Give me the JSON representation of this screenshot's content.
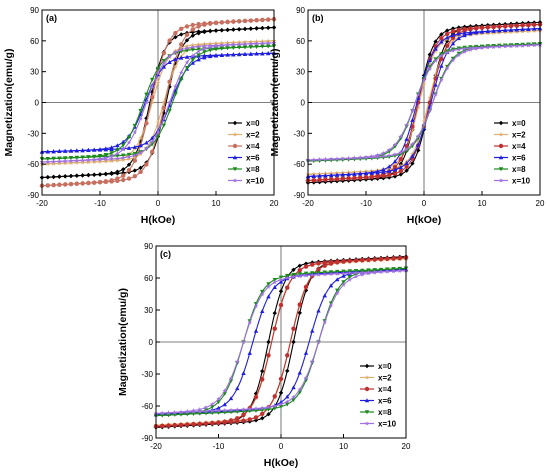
{
  "chart_data": [
    {
      "type": "line",
      "panel_label": "(a)",
      "xlabel": "H(kOe)",
      "ylabel": "Magnetization(emu/g)",
      "xlim": [
        -20,
        20
      ],
      "ylim": [
        -90,
        90
      ],
      "x_ticks": [
        "-20",
        "-10",
        "0",
        "10",
        "20"
      ],
      "y_ticks": [
        "-90",
        "-60",
        "-30",
        "0",
        "30",
        "60",
        "90"
      ],
      "legend_position": "bottom-right",
      "series": [
        {
          "name": "x=0",
          "color": "#000000",
          "marker": "diamond",
          "ms": 73,
          "hc": 1.4
        },
        {
          "name": "x=2",
          "color": "#e0b070",
          "marker": "star",
          "ms": 60,
          "hc": 1.0
        },
        {
          "name": "x=4",
          "color": "#c87060",
          "marker": "circle",
          "ms": 81,
          "hc": 1.2
        },
        {
          "name": "x=6",
          "color": "#1e1ee0",
          "marker": "triangle",
          "ms": 48,
          "hc": 2.2
        },
        {
          "name": "x=8",
          "color": "#1a8a1a",
          "marker": "triangle-down",
          "ms": 55,
          "hc": 2.5
        },
        {
          "name": "x=10",
          "color": "#a070e0",
          "marker": "star",
          "ms": 58,
          "hc": 2.0
        }
      ]
    },
    {
      "type": "line",
      "panel_label": "(b)",
      "xlabel": "H(kOe)",
      "ylabel": "Magnetization(emu/g)",
      "xlim": [
        -20,
        20
      ],
      "ylim": [
        -90,
        90
      ],
      "x_ticks": [
        "-20",
        "-10",
        "0",
        "10",
        "20"
      ],
      "y_ticks": [
        "-90",
        "-60",
        "-30",
        "0",
        "30",
        "60",
        "90"
      ],
      "legend_position": "bottom-right",
      "series": [
        {
          "name": "x=0",
          "color": "#000000",
          "marker": "diamond",
          "ms": 78,
          "hc": 1.0
        },
        {
          "name": "x=2",
          "color": "#e0b070",
          "marker": "star",
          "ms": 70,
          "hc": 0.8
        },
        {
          "name": "x=4",
          "color": "#c03030",
          "marker": "circle",
          "ms": 76,
          "hc": 1.0
        },
        {
          "name": "x=6",
          "color": "#1e1ee0",
          "marker": "triangle",
          "ms": 72,
          "hc": 1.2
        },
        {
          "name": "x=8",
          "color": "#1a8a1a",
          "marker": "triangle-down",
          "ms": 57,
          "hc": 1.5
        },
        {
          "name": "x=10",
          "color": "#a070e0",
          "marker": "star",
          "ms": 56,
          "hc": 1.5
        }
      ]
    },
    {
      "type": "line",
      "panel_label": "(c)",
      "xlabel": "H(kOe)",
      "ylabel": "Magnetization(emu/g)",
      "xlim": [
        -20,
        20
      ],
      "ylim": [
        -90,
        90
      ],
      "x_ticks": [
        "-20",
        "-10",
        "0",
        "10",
        "20"
      ],
      "y_ticks": [
        "-90",
        "-60",
        "-30",
        "0",
        "30",
        "60",
        "90"
      ],
      "legend_position": "bottom-right",
      "series": [
        {
          "name": "x=0",
          "color": "#000000",
          "marker": "diamond",
          "ms": 80,
          "hc": 2.0
        },
        {
          "name": "x=2",
          "color": "#e0b070",
          "marker": "star",
          "ms": 78,
          "hc": 1.5
        },
        {
          "name": "x=4",
          "color": "#c03030",
          "marker": "circle",
          "ms": 79,
          "hc": 1.5
        },
        {
          "name": "x=6",
          "color": "#1e1ee0",
          "marker": "triangle",
          "ms": 68,
          "hc": 4.5
        },
        {
          "name": "x=8",
          "color": "#1a8a1a",
          "marker": "triangle-down",
          "ms": 69,
          "hc": 6.0
        },
        {
          "name": "x=10",
          "color": "#a070e0",
          "marker": "star",
          "ms": 67,
          "hc": 6.0
        }
      ]
    }
  ]
}
